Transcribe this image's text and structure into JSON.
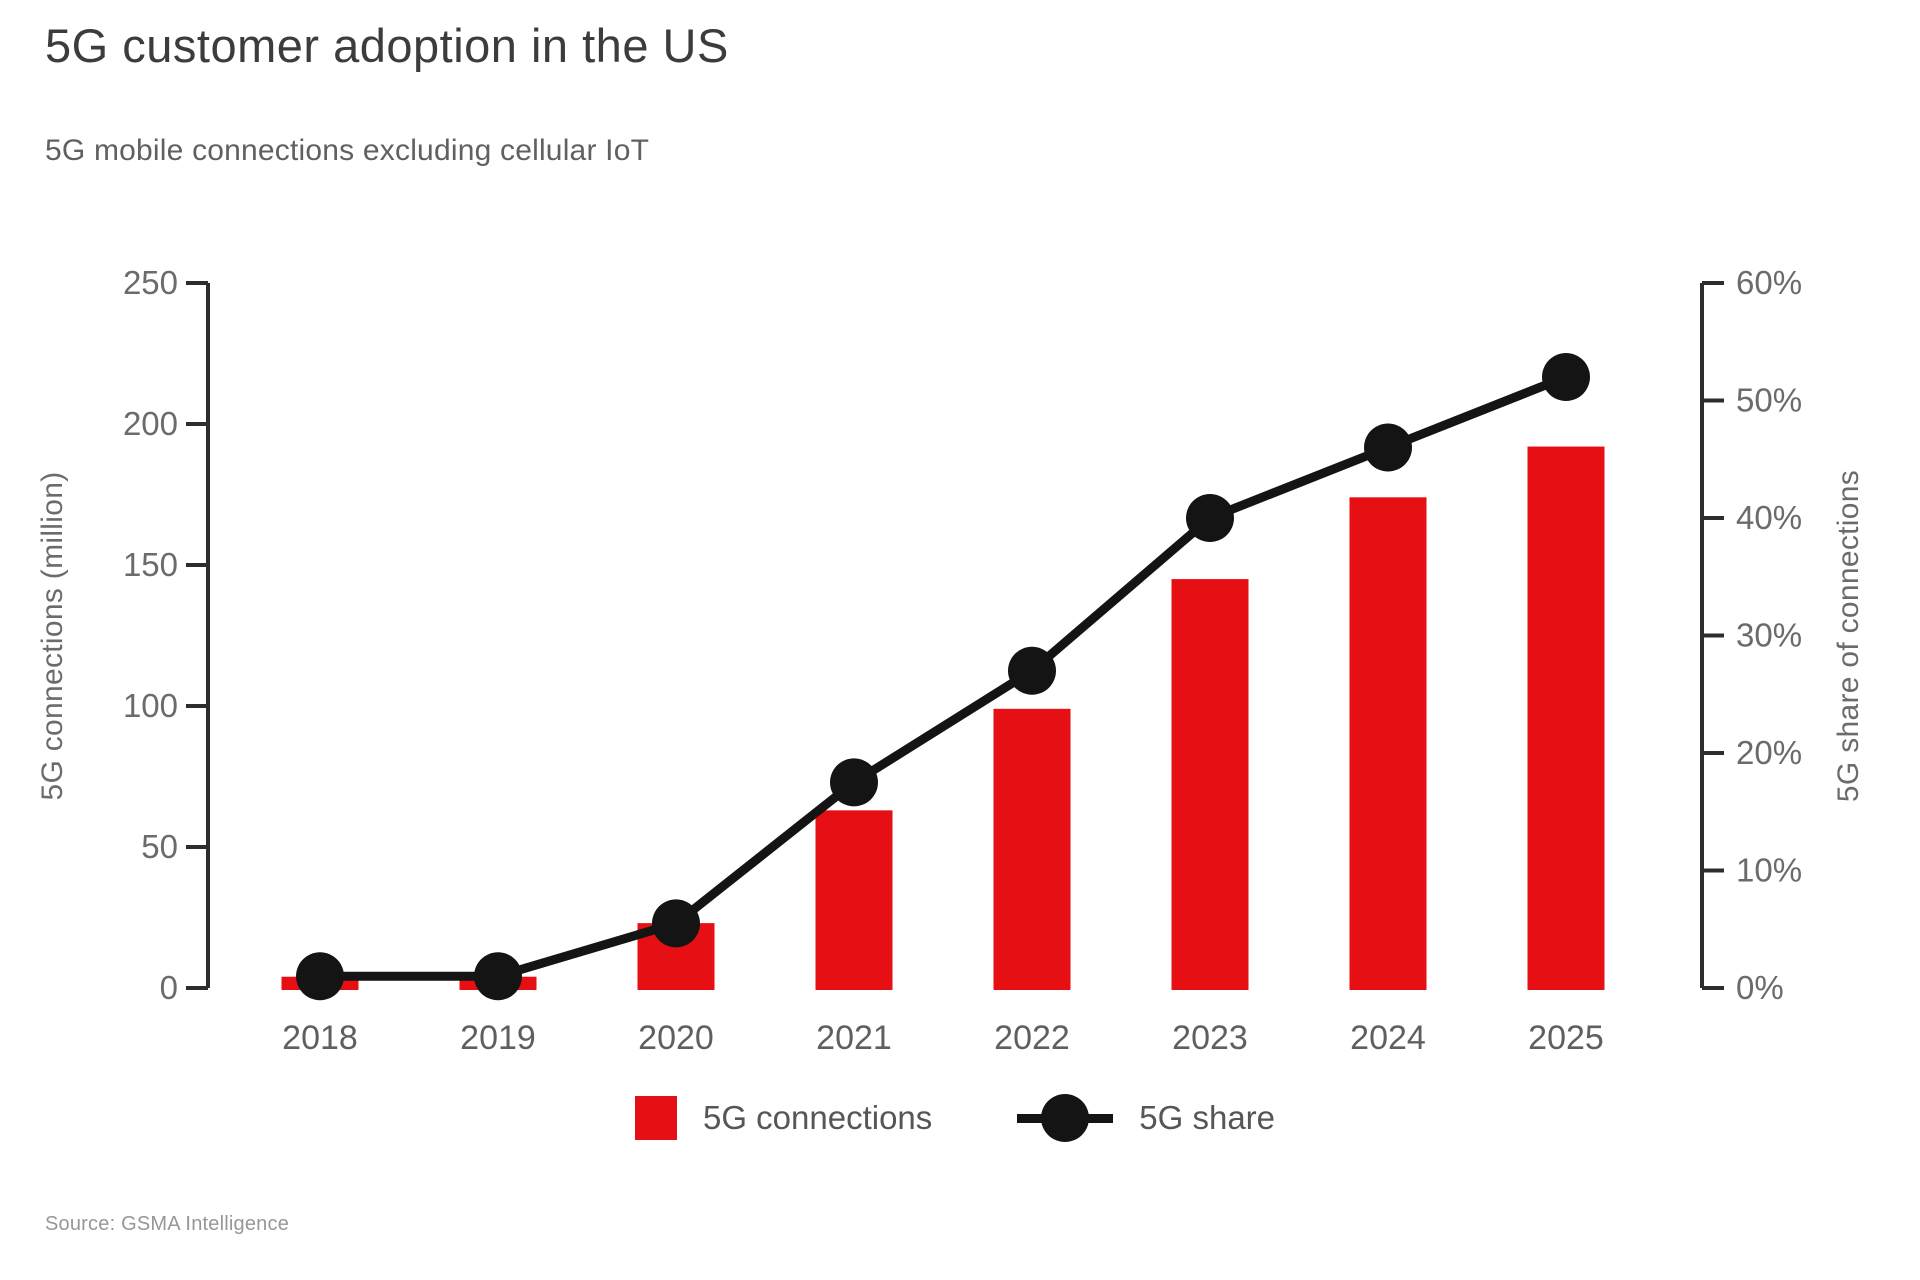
{
  "page": {
    "title": "5G customer adoption in the US",
    "subtitle": "5G mobile connections excluding cellular IoT",
    "source": "Source: GSMA Intelligence"
  },
  "legend": {
    "position": "bottom",
    "items": [
      {
        "label": "5G connections",
        "marker": "square-icon",
        "color": "#e60f14"
      },
      {
        "label": "5G share",
        "marker": "dot-line-icon",
        "color": "#141414"
      }
    ]
  },
  "chart_data": {
    "type": "combo-bar-line",
    "categories": [
      "2018",
      "2019",
      "2020",
      "2021",
      "2022",
      "2023",
      "2024",
      "2025"
    ],
    "series": [
      {
        "name": "5G connections",
        "kind": "bar",
        "axis": "left",
        "unit": "million",
        "color": "#e60f14",
        "values": [
          4,
          4,
          23,
          63,
          99,
          145,
          174,
          192
        ]
      },
      {
        "name": "5G share",
        "kind": "line",
        "axis": "right",
        "unit": "percent",
        "color": "#141414",
        "values": [
          1,
          1,
          5.5,
          17.5,
          27,
          40,
          46,
          52
        ]
      }
    ],
    "left_axis": {
      "label": "5G connections (million)",
      "range": [
        0,
        250
      ],
      "ticks": [
        250,
        200,
        150,
        100,
        50,
        0
      ]
    },
    "right_axis": {
      "label": "5G share of connections",
      "range": [
        0,
        60
      ],
      "ticks": [
        "60%",
        "50%",
        "40%",
        "30%",
        "20%",
        "10%",
        "0%"
      ]
    },
    "grid": false,
    "legend_position": "bottom"
  }
}
